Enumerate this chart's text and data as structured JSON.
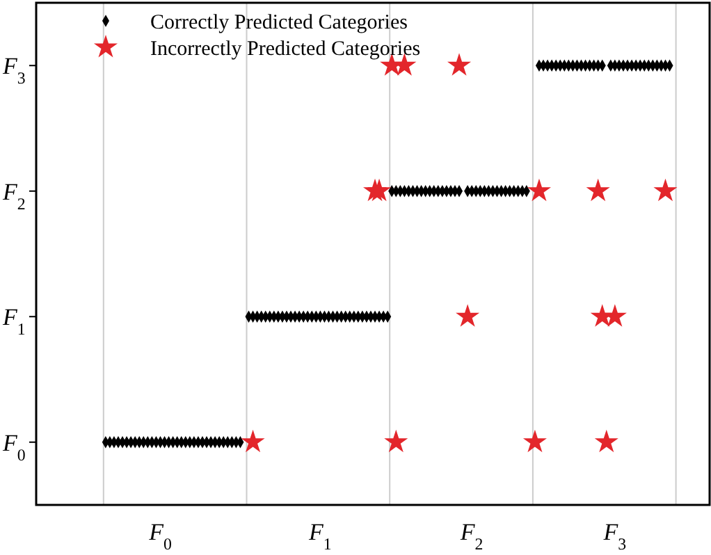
{
  "chart_data": {
    "type": "scatter",
    "categories": [
      null,
      null,
      null,
      null,
      null,
      null,
      null,
      null,
      null,
      null,
      null,
      null,
      null,
      null,
      null,
      null,
      null,
      null,
      null,
      null,
      null,
      null,
      null,
      null,
      null,
      null,
      null,
      null,
      null,
      "F$_{0}$",
      null,
      null,
      null,
      null,
      null,
      null,
      null,
      null,
      null,
      null,
      null,
      null,
      null,
      null,
      null,
      null,
      null,
      null,
      null,
      null,
      null,
      null,
      null,
      null,
      null,
      null,
      null,
      null,
      null,
      null,
      null,
      null,
      null,
      null,
      null,
      null,
      null,
      "F$_{1}$",
      null,
      null,
      null,
      null,
      null,
      null,
      null,
      null,
      null,
      null,
      null,
      null,
      null,
      null,
      null,
      null,
      null,
      null,
      null,
      null,
      null,
      null,
      null,
      null,
      null,
      null,
      null,
      null,
      null,
      null,
      null,
      null,
      null,
      null,
      null,
      "F$_{2}$",
      null,
      null,
      null,
      null,
      null,
      null,
      null,
      null,
      null,
      null,
      null,
      null,
      null,
      null,
      null,
      null,
      null,
      null,
      null,
      null,
      null,
      null,
      null,
      null,
      null,
      null,
      null,
      null,
      null,
      null,
      null,
      null,
      null,
      "F$_{3}$",
      null,
      null,
      null,
      null,
      null,
      null,
      null,
      null,
      null,
      null,
      null,
      null,
      null,
      null,
      null,
      null,
      null,
      null,
      null,
      null,
      null,
      null
    ],
    "ylim": [
      -0.5,
      3.5
    ],
    "yticks": [
      {
        "value": 0,
        "label": "F$_{0}$"
      },
      {
        "value": 1,
        "label": "F$_{1}$"
      },
      {
        "value": 2,
        "label": "F$_{2}$"
      },
      {
        "value": 3,
        "label": "F$_{3}$"
      }
    ],
    "legend": "top left",
    "series": [
      {
        "name": "Correctly Predicted Categories",
        "color": "#000000",
        "marker": "diamond",
        "values": [
          null,
          null,
          null,
          null,
          null,
          null,
          null,
          null,
          null,
          null,
          null,
          null,
          null,
          null,
          null,
          null,
          0,
          0,
          0,
          0,
          0,
          0,
          0,
          0,
          0,
          0,
          0,
          0,
          0,
          0,
          0,
          0,
          0,
          0,
          0,
          0,
          0,
          0,
          0,
          0,
          0,
          0,
          0,
          0,
          0,
          0,
          0,
          0,
          0,
          null,
          1,
          1,
          1,
          1,
          1,
          1,
          1,
          1,
          1,
          1,
          1,
          1,
          1,
          1,
          1,
          1,
          1,
          1,
          1,
          1,
          1,
          1,
          1,
          1,
          1,
          1,
          1,
          1,
          1,
          1,
          1,
          1,
          1,
          1,
          2,
          2,
          2,
          2,
          2,
          2,
          2,
          2,
          2,
          2,
          2,
          2,
          2,
          2,
          2,
          2,
          2,
          null,
          2,
          2,
          2,
          2,
          2,
          2,
          2,
          2,
          2,
          2,
          2,
          2,
          2,
          2,
          2,
          null,
          null,
          3,
          3,
          3,
          3,
          3,
          3,
          3,
          3,
          3,
          3,
          3,
          3,
          3,
          3,
          3,
          3,
          null,
          3,
          3,
          3,
          3,
          3,
          3,
          3,
          3,
          3,
          3,
          3,
          3,
          3,
          3,
          3,
          null,
          null,
          null,
          null,
          null,
          null,
          null,
          null,
          null
        ]
      },
      {
        "name": "Incorrectly Predicted Categories",
        "color": "#e3262b",
        "marker": "star",
        "values": [
          null,
          null,
          null,
          null,
          null,
          null,
          null,
          null,
          null,
          null,
          null,
          null,
          null,
          null,
          null,
          null,
          null,
          null,
          null,
          null,
          null,
          null,
          null,
          null,
          null,
          null,
          null,
          null,
          null,
          null,
          null,
          null,
          null,
          null,
          null,
          null,
          null,
          null,
          null,
          null,
          null,
          null,
          null,
          null,
          null,
          null,
          null,
          null,
          null,
          null,
          null,
          0,
          null,
          null,
          null,
          null,
          null,
          null,
          null,
          null,
          null,
          null,
          null,
          null,
          null,
          null,
          null,
          null,
          null,
          null,
          null,
          null,
          null,
          null,
          null,
          null,
          null,
          null,
          null,
          null,
          2,
          2,
          null,
          null,
          3,
          0,
          null,
          3,
          null,
          null,
          null,
          null,
          null,
          null,
          null,
          null,
          null,
          null,
          null,
          null,
          3,
          null,
          1,
          null,
          null,
          null,
          null,
          null,
          null,
          null,
          null,
          null,
          null,
          null,
          null,
          null,
          null,
          null,
          0,
          2,
          null,
          null,
          null,
          null,
          null,
          null,
          null,
          null,
          null,
          null,
          null,
          null,
          null,
          2,
          1,
          0,
          null,
          1,
          null,
          null,
          null,
          null,
          null,
          null,
          null,
          null,
          null,
          null,
          null,
          2,
          null,
          null,
          null,
          null,
          null,
          null,
          null,
          null,
          null,
          null
        ]
      }
    ]
  }
}
